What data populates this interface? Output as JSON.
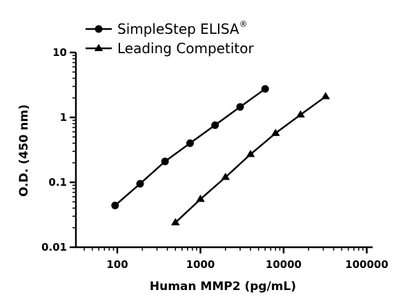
{
  "chart_data": {
    "type": "line",
    "xlabel": "Human MMP2 (pg/mL)",
    "ylabel": "O.D. (450 nm)",
    "x_scale": "log",
    "y_scale": "log",
    "xlim": [
      30,
      100000
    ],
    "ylim": [
      0.01,
      10
    ],
    "x_ticks": [
      100,
      1000,
      10000,
      100000
    ],
    "x_tick_labels": [
      "100",
      "1000",
      "10000",
      "100000"
    ],
    "y_ticks": [
      0.01,
      0.1,
      1,
      10
    ],
    "y_tick_labels": [
      "0.01",
      "0.1",
      "1",
      "10"
    ],
    "grid": false,
    "legend_position": "top-left",
    "series": [
      {
        "name": "SimpleStep ELISA",
        "name_superscript": "®",
        "marker": "circle",
        "color": "#000000",
        "x": [
          94,
          188,
          375,
          750,
          1500,
          3000,
          6000
        ],
        "y": [
          0.044,
          0.095,
          0.21,
          0.4,
          0.76,
          1.45,
          2.75
        ]
      },
      {
        "name": "Leading Competitor",
        "marker": "triangle",
        "color": "#000000",
        "x": [
          500,
          1000,
          2000,
          4000,
          8000,
          16000,
          32000
        ],
        "y": [
          0.024,
          0.055,
          0.12,
          0.27,
          0.57,
          1.1,
          2.1
        ]
      }
    ]
  }
}
